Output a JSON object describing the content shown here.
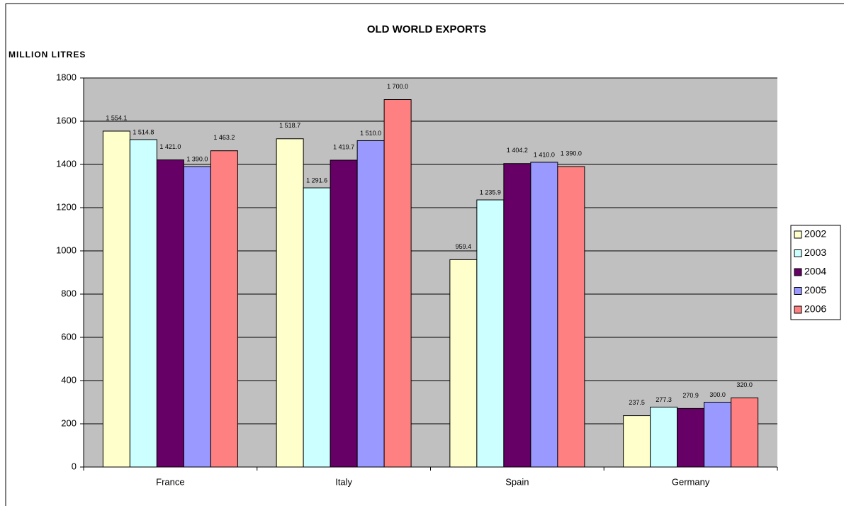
{
  "chart_data": {
    "type": "bar",
    "title": "OLD WORLD EXPORTS",
    "y_label": "MILLION LITRES",
    "categories": [
      "France",
      "Italy",
      "Spain",
      "Germany"
    ],
    "series": [
      {
        "name": "2002",
        "color": "#ffffcc",
        "values": [
          1554.1,
          1518.7,
          959.4,
          237.5
        ],
        "value_labels": [
          "1 554.1",
          "1 518.7",
          "959.4",
          "237.5"
        ]
      },
      {
        "name": "2003",
        "color": "#ccffff",
        "values": [
          1514.8,
          1291.6,
          1235.9,
          277.3
        ],
        "value_labels": [
          "1 514.8",
          "1 291.6",
          "1 235.9",
          "277.3"
        ]
      },
      {
        "name": "2004",
        "color": "#660066",
        "values": [
          1421.0,
          1419.7,
          1404.2,
          270.9
        ],
        "value_labels": [
          "1 421.0",
          "1 419.7",
          "1 404.2",
          "270.9"
        ]
      },
      {
        "name": "2005",
        "color": "#9999ff",
        "values": [
          1390.0,
          1510.0,
          1410.0,
          300.0
        ],
        "value_labels": [
          "1 390.0",
          "1 510.0",
          "1 410.0",
          "300.0"
        ]
      },
      {
        "name": "2006",
        "color": "#ff8080",
        "values": [
          1463.2,
          1700.0,
          1390.0,
          320.0
        ],
        "value_labels": [
          "1 463.2",
          "1 700.0",
          "1 390.0",
          "320.0"
        ]
      }
    ],
    "ylim": [
      0,
      1800
    ],
    "yticks": [
      0,
      200,
      400,
      600,
      800,
      1000,
      1200,
      1400,
      1600,
      1800
    ],
    "grid": true,
    "legend": "right"
  }
}
